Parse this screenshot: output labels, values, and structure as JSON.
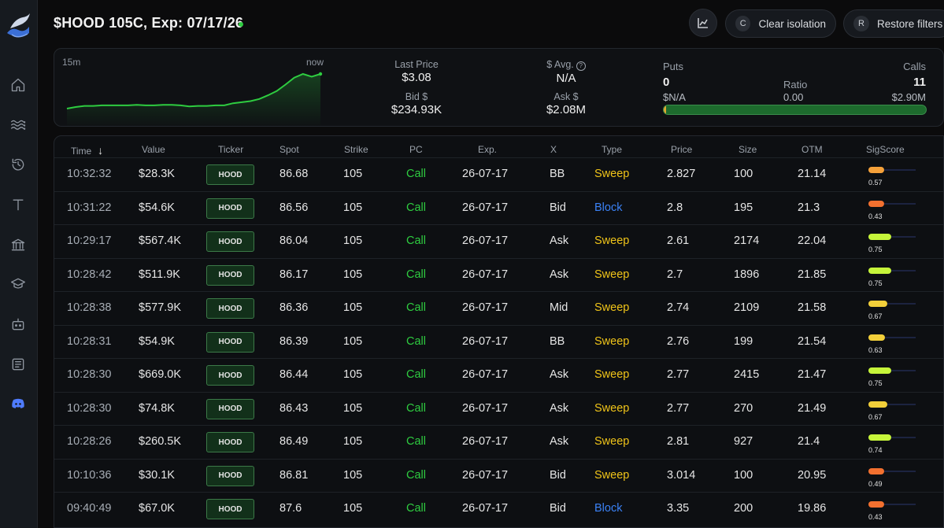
{
  "header": {
    "title": "$HOOD 105C, Exp: 07/17/26",
    "chart_icon": "line-chart-icon",
    "clear_key": "C",
    "clear_label": "Clear isolation",
    "restore_key": "R",
    "restore_label": "Restore filters"
  },
  "sidebar": {
    "items": [
      {
        "icon": "home-icon"
      },
      {
        "icon": "waves-icon"
      },
      {
        "icon": "history-icon"
      },
      {
        "icon": "text-icon"
      },
      {
        "icon": "bank-icon"
      },
      {
        "icon": "graduation-cap-icon"
      },
      {
        "icon": "robot-icon"
      },
      {
        "icon": "news-icon"
      },
      {
        "icon": "discord-icon"
      }
    ]
  },
  "summary": {
    "spark_start": "15m",
    "spark_end": "now",
    "spark_values": [
      0.0,
      0.03,
      0.05,
      0.05,
      0.06,
      0.06,
      0.06,
      0.06,
      0.07,
      0.06,
      0.06,
      0.07,
      0.07,
      0.06,
      0.04,
      0.05,
      0.05,
      0.06,
      0.06,
      0.1,
      0.12,
      0.14,
      0.18,
      0.25,
      0.33,
      0.45,
      0.58,
      0.65,
      0.6,
      0.65
    ],
    "last_price_label": "Last Price",
    "last_price": "$3.08",
    "bid_label": "Bid $",
    "bid": "$234.93K",
    "avg_label": "$ Avg.",
    "avg": "N/A",
    "ask_label": "Ask $",
    "ask": "$2.08M",
    "puts_label": "Puts",
    "puts_count": "0",
    "puts_value": "$N/A",
    "ratio_label": "Ratio",
    "ratio_value": "0.00",
    "calls_label": "Calls",
    "calls_count": "11",
    "calls_value": "$2.90M",
    "puts_share": 0.01
  },
  "table": {
    "columns": [
      "Time",
      "Value",
      "Ticker",
      "Spot",
      "Strike",
      "PC",
      "Exp.",
      "X",
      "Type",
      "Price",
      "Size",
      "OTM",
      "SigScore"
    ],
    "rows": [
      {
        "time": "10:32:32",
        "value": "$28.3K",
        "ticker": "HOOD",
        "spot": "86.68",
        "strike": "105",
        "pc": "Call",
        "exp": "26-07-17",
        "x": "BB",
        "type": "Sweep",
        "price": "2.827",
        "size": "100",
        "otm": "21.14",
        "score": "0.57",
        "score_color": "#f5a13a"
      },
      {
        "time": "10:31:22",
        "value": "$54.6K",
        "ticker": "HOOD",
        "spot": "86.56",
        "strike": "105",
        "pc": "Call",
        "exp": "26-07-17",
        "x": "Bid",
        "type": "Block",
        "price": "2.8",
        "size": "195",
        "otm": "21.3",
        "score": "0.43",
        "score_color": "#f2702f"
      },
      {
        "time": "10:29:17",
        "value": "$567.4K",
        "ticker": "HOOD",
        "spot": "86.04",
        "strike": "105",
        "pc": "Call",
        "exp": "26-07-17",
        "x": "Ask",
        "type": "Sweep",
        "price": "2.61",
        "size": "2174",
        "otm": "22.04",
        "score": "0.75",
        "score_color": "#c6f53a"
      },
      {
        "time": "10:28:42",
        "value": "$511.9K",
        "ticker": "HOOD",
        "spot": "86.17",
        "strike": "105",
        "pc": "Call",
        "exp": "26-07-17",
        "x": "Ask",
        "type": "Sweep",
        "price": "2.7",
        "size": "1896",
        "otm": "21.85",
        "score": "0.75",
        "score_color": "#c6f53a"
      },
      {
        "time": "10:28:38",
        "value": "$577.9K",
        "ticker": "HOOD",
        "spot": "86.36",
        "strike": "105",
        "pc": "Call",
        "exp": "26-07-17",
        "x": "Mid",
        "type": "Sweep",
        "price": "2.74",
        "size": "2109",
        "otm": "21.58",
        "score": "0.67",
        "score_color": "#f2cf3a"
      },
      {
        "time": "10:28:31",
        "value": "$54.9K",
        "ticker": "HOOD",
        "spot": "86.39",
        "strike": "105",
        "pc": "Call",
        "exp": "26-07-17",
        "x": "BB",
        "type": "Sweep",
        "price": "2.76",
        "size": "199",
        "otm": "21.54",
        "score": "0.63",
        "score_color": "#f2cf3a"
      },
      {
        "time": "10:28:30",
        "value": "$669.0K",
        "ticker": "HOOD",
        "spot": "86.44",
        "strike": "105",
        "pc": "Call",
        "exp": "26-07-17",
        "x": "Ask",
        "type": "Sweep",
        "price": "2.77",
        "size": "2415",
        "otm": "21.47",
        "score": "0.75",
        "score_color": "#c6f53a"
      },
      {
        "time": "10:28:30",
        "value": "$74.8K",
        "ticker": "HOOD",
        "spot": "86.43",
        "strike": "105",
        "pc": "Call",
        "exp": "26-07-17",
        "x": "Ask",
        "type": "Sweep",
        "price": "2.77",
        "size": "270",
        "otm": "21.49",
        "score": "0.67",
        "score_color": "#f2cf3a"
      },
      {
        "time": "10:28:26",
        "value": "$260.5K",
        "ticker": "HOOD",
        "spot": "86.49",
        "strike": "105",
        "pc": "Call",
        "exp": "26-07-17",
        "x": "Ask",
        "type": "Sweep",
        "price": "2.81",
        "size": "927",
        "otm": "21.4",
        "score": "0.74",
        "score_color": "#c6f53a"
      },
      {
        "time": "10:10:36",
        "value": "$30.1K",
        "ticker": "HOOD",
        "spot": "86.81",
        "strike": "105",
        "pc": "Call",
        "exp": "26-07-17",
        "x": "Bid",
        "type": "Sweep",
        "price": "3.014",
        "size": "100",
        "otm": "20.95",
        "score": "0.49",
        "score_color": "#f2702f"
      },
      {
        "time": "09:40:49",
        "value": "$67.0K",
        "ticker": "HOOD",
        "spot": "87.6",
        "strike": "105",
        "pc": "Call",
        "exp": "26-07-17",
        "x": "Bid",
        "type": "Block",
        "price": "3.35",
        "size": "200",
        "otm": "19.86",
        "score": "0.43",
        "score_color": "#f2702f"
      }
    ]
  }
}
